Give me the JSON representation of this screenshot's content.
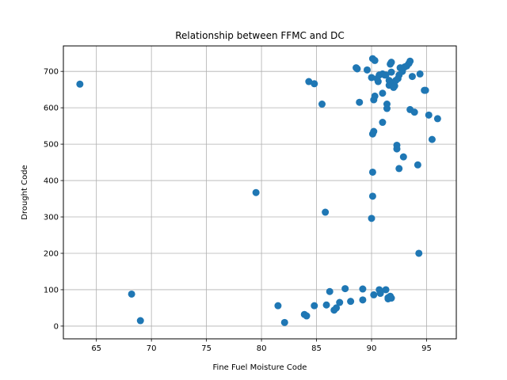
{
  "chart_data": {
    "type": "scatter",
    "title": "Relationship between FFMC and DC",
    "xlabel": "Fine Fuel Moisture Code",
    "ylabel": "Drought Code",
    "xlim": [
      62.0,
      97.7
    ],
    "ylim": [
      -35,
      770
    ],
    "xticks": [
      65,
      70,
      75,
      80,
      85,
      90,
      95
    ],
    "yticks": [
      0,
      100,
      200,
      300,
      400,
      500,
      600,
      700
    ],
    "grid": true,
    "legend": "none",
    "marker_color": "#1f77b4",
    "points": [
      [
        63.5,
        665
      ],
      [
        68.2,
        88
      ],
      [
        69.0,
        15
      ],
      [
        79.5,
        367
      ],
      [
        81.5,
        56
      ],
      [
        82.1,
        10
      ],
      [
        83.9,
        32
      ],
      [
        84.1,
        28
      ],
      [
        84.3,
        672
      ],
      [
        84.8,
        666
      ],
      [
        84.8,
        56
      ],
      [
        85.5,
        610
      ],
      [
        85.8,
        313
      ],
      [
        85.9,
        58
      ],
      [
        86.2,
        95
      ],
      [
        86.6,
        44
      ],
      [
        86.8,
        50
      ],
      [
        87.1,
        65
      ],
      [
        87.6,
        103
      ],
      [
        88.1,
        68
      ],
      [
        88.6,
        710
      ],
      [
        88.7,
        707
      ],
      [
        88.9,
        615
      ],
      [
        89.2,
        102
      ],
      [
        89.2,
        72
      ],
      [
        89.6,
        704
      ],
      [
        90.0,
        683
      ],
      [
        90.0,
        296
      ],
      [
        90.1,
        735
      ],
      [
        90.1,
        357
      ],
      [
        90.1,
        423
      ],
      [
        90.1,
        528
      ],
      [
        90.2,
        535
      ],
      [
        90.2,
        622
      ],
      [
        90.3,
        632
      ],
      [
        90.2,
        86
      ],
      [
        90.3,
        730
      ],
      [
        90.5,
        680
      ],
      [
        90.6,
        672
      ],
      [
        90.7,
        690
      ],
      [
        90.7,
        100
      ],
      [
        90.8,
        90
      ],
      [
        91.0,
        560
      ],
      [
        91.0,
        693
      ],
      [
        91.0,
        640
      ],
      [
        91.2,
        690
      ],
      [
        91.3,
        100
      ],
      [
        91.3,
        690
      ],
      [
        91.4,
        598
      ],
      [
        91.4,
        610
      ],
      [
        91.5,
        78
      ],
      [
        91.5,
        75
      ],
      [
        91.6,
        675
      ],
      [
        91.6,
        662
      ],
      [
        91.7,
        720
      ],
      [
        91.7,
        82
      ],
      [
        91.8,
        77
      ],
      [
        91.8,
        725
      ],
      [
        91.8,
        698
      ],
      [
        91.9,
        665
      ],
      [
        92.0,
        656
      ],
      [
        92.1,
        660
      ],
      [
        92.2,
        675
      ],
      [
        92.3,
        497
      ],
      [
        92.3,
        487
      ],
      [
        92.4,
        680
      ],
      [
        92.5,
        433
      ],
      [
        92.5,
        690
      ],
      [
        92.6,
        710
      ],
      [
        92.8,
        700
      ],
      [
        92.9,
        465
      ],
      [
        93.0,
        712
      ],
      [
        93.2,
        715
      ],
      [
        93.4,
        722
      ],
      [
        93.5,
        728
      ],
      [
        93.5,
        595
      ],
      [
        93.7,
        686
      ],
      [
        93.9,
        588
      ],
      [
        94.2,
        443
      ],
      [
        94.3,
        200
      ],
      [
        94.4,
        693
      ],
      [
        94.8,
        648
      ],
      [
        94.9,
        648
      ],
      [
        95.2,
        580
      ],
      [
        95.5,
        513
      ],
      [
        96.0,
        570
      ]
    ]
  }
}
